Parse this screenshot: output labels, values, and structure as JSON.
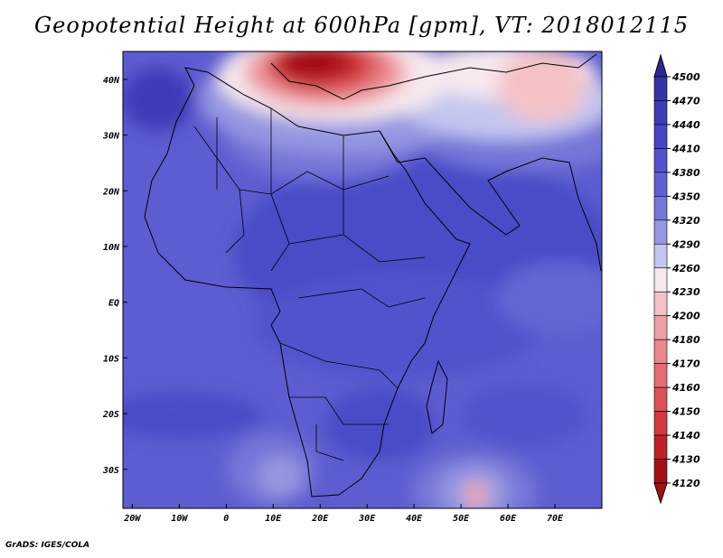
{
  "title": "Geopotential Height at 600hPa [gpm], VT: 2018012115",
  "credit": "GrADS: IGES/COLA",
  "map": {
    "projection": "latlon",
    "lon_range": [
      -22,
      80
    ],
    "lat_range": [
      -37,
      45
    ],
    "lon_ticks": [
      "20W",
      "10W",
      "0",
      "10E",
      "20E",
      "30E",
      "40E",
      "50E",
      "60E",
      "70E"
    ],
    "lat_ticks": [
      "40N",
      "30N",
      "20N",
      "10N",
      "EQ",
      "10S",
      "20S",
      "30S"
    ]
  },
  "colorbar": {
    "levels": [
      "4500",
      "4470",
      "4440",
      "4410",
      "4380",
      "4350",
      "4320",
      "4290",
      "4260",
      "4230",
      "4200",
      "4180",
      "4170",
      "4160",
      "4150",
      "4140",
      "4130",
      "4120"
    ],
    "colors": [
      "#2d2a8f",
      "#3533a6",
      "#3c3bb8",
      "#4545c6",
      "#5152cc",
      "#5f60d2",
      "#7577d8",
      "#9597e0",
      "#c4c6ef",
      "#f6e8ec",
      "#f4c2c6",
      "#ee9fa4",
      "#e9878c",
      "#e36d72",
      "#dc5257",
      "#d23a3f",
      "#bf2226",
      "#a51014"
    ]
  }
}
